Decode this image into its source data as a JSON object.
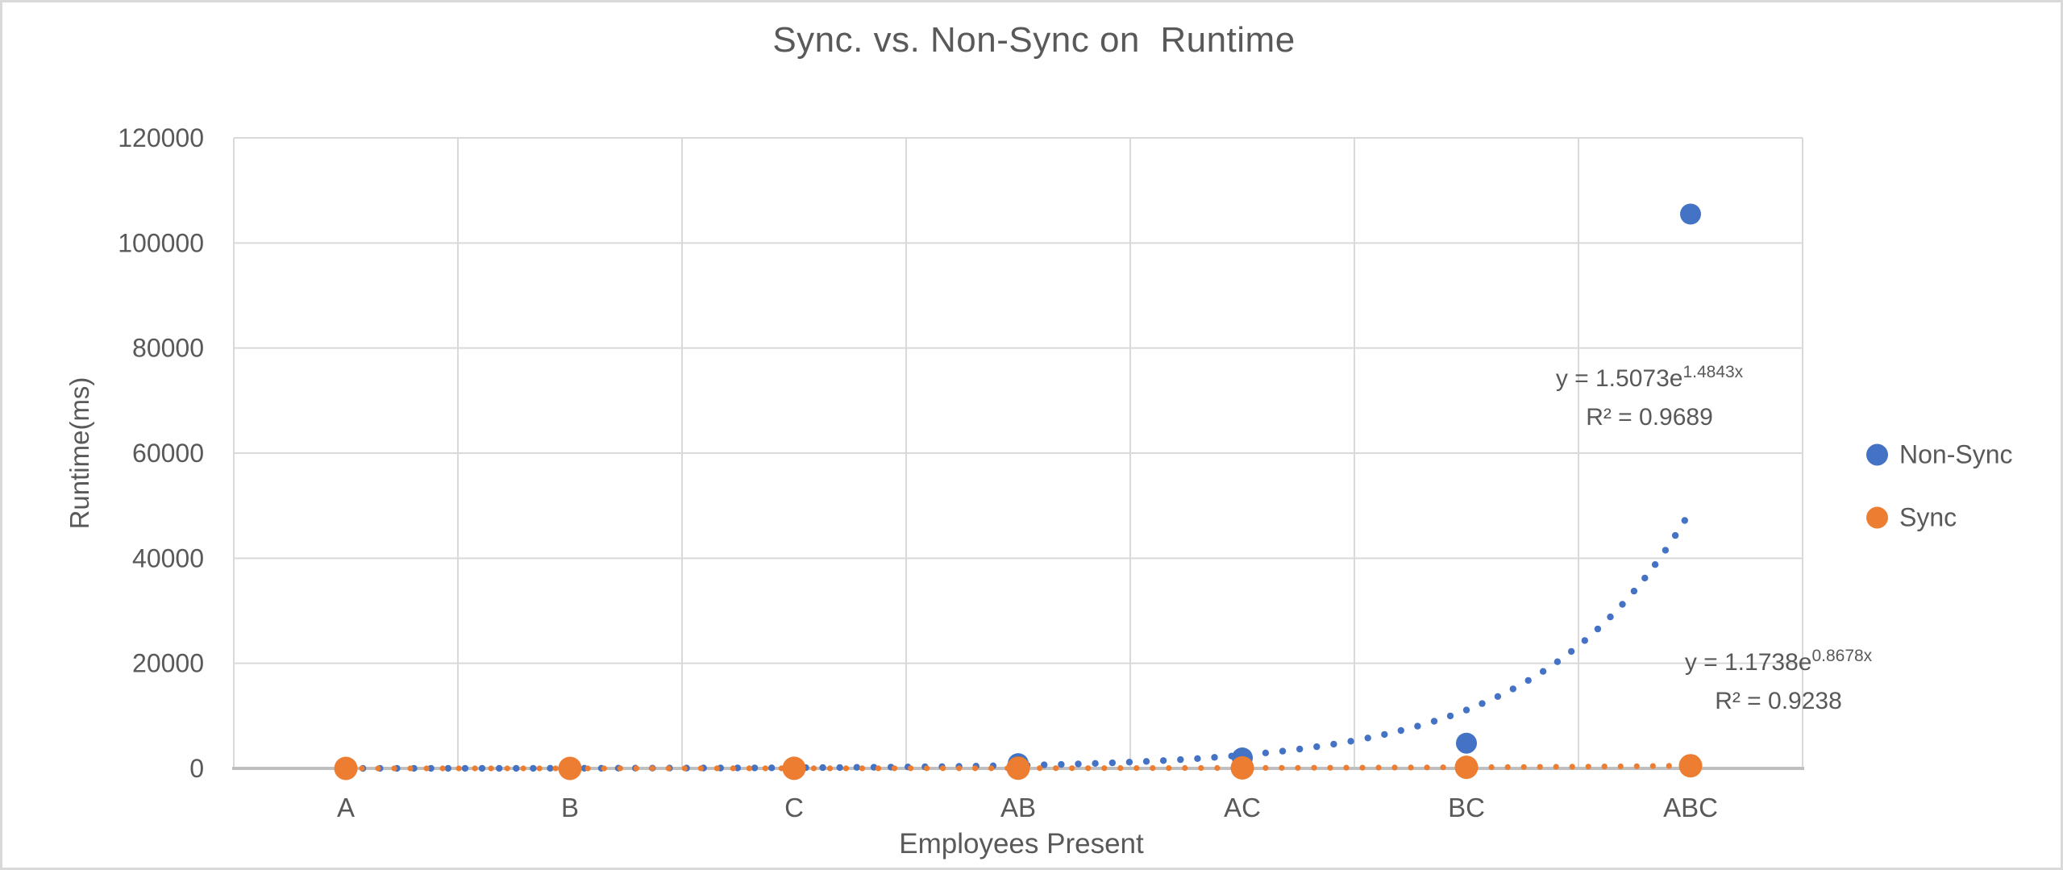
{
  "chart_data": {
    "type": "scatter",
    "title": "Sync. vs. Non-Sync on  Runtime",
    "xlabel": "Employees Present",
    "ylabel": "Runtime(ms)",
    "ylim": [
      0,
      120000
    ],
    "ytick_labels": [
      "0",
      "20000",
      "40000",
      "60000",
      "80000",
      "100000",
      "120000"
    ],
    "grid": true,
    "legend_position": "right",
    "categories": [
      "A",
      "B",
      "C",
      "AB",
      "AC",
      "BC",
      "ABC"
    ],
    "series": [
      {
        "name": "Non-Sync",
        "color": "#4472C4",
        "values": [
          5,
          30,
          130,
          900,
          2000,
          4800,
          105500
        ],
        "trendline": {
          "kind": "exponential",
          "a": 1.5073,
          "b": 1.4843,
          "eq_base": "y = 1.5073e",
          "eq_exp": "1.4843x",
          "r2_label": "R² = 0.9689"
        }
      },
      {
        "name": "Sync",
        "color": "#ED7D31",
        "values": [
          3,
          7,
          16,
          40,
          90,
          215,
          500
        ],
        "trendline": {
          "kind": "exponential",
          "a": 1.1738,
          "b": 0.8678,
          "eq_base": "y = 1.1738e",
          "eq_exp": "0.8678x",
          "r2_label": "R² = 0.9238"
        }
      }
    ],
    "colors": {
      "text": "#595959",
      "gridline": "#D9D9D9",
      "axis_line": "#BFBFBF"
    }
  }
}
